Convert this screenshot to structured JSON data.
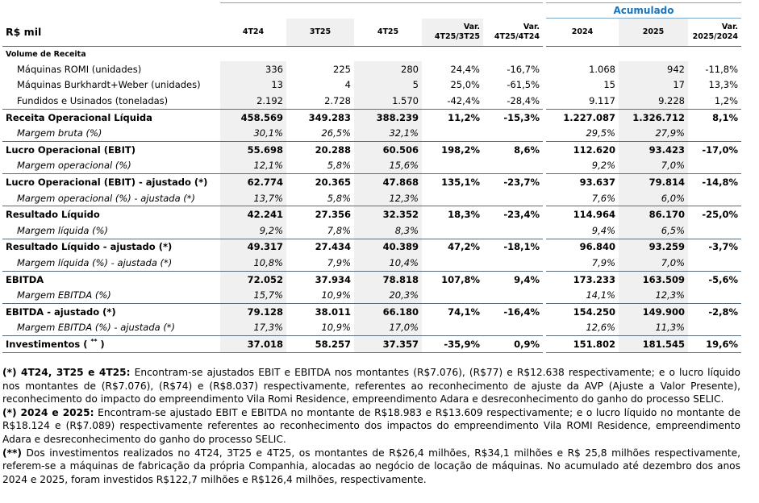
{
  "title": "R$ mil",
  "accumulated_title": "Acumulado",
  "columns": {
    "q4_24": "4T24",
    "q3_25": "3T25",
    "q4_25": "4T25",
    "var1_a": "Var.",
    "var1_b": "4T25/3T25",
    "var2_a": "Var.",
    "var2_b": "4T25/4T24",
    "y2024": "2024",
    "y2025": "2025",
    "var3_a": "Var.",
    "var3_b": "2025/2024"
  },
  "section_title": "Volume de Receita",
  "rows": [
    {
      "label": "Máquinas ROMI (unidades)",
      "v": [
        "336",
        "225",
        "280",
        "24,4%",
        "-16,7%",
        "1.068",
        "942",
        "-11,8%"
      ]
    },
    {
      "label": "Máquinas Burkhardt+Weber (unidades)",
      "v": [
        "13",
        "4",
        "5",
        "25,0%",
        "-61,5%",
        "15",
        "17",
        "13,3%"
      ]
    },
    {
      "label": "Fundidos e Usinados (toneladas)",
      "v": [
        "2.192",
        "2.728",
        "1.570",
        "-42,4%",
        "-28,4%",
        "9.117",
        "9.228",
        "1,2%"
      ]
    },
    {
      "label": "Receita Operacional Líquida",
      "v": [
        "458.569",
        "349.283",
        "388.239",
        "11,2%",
        "-15,3%",
        "1.227.087",
        "1.326.712",
        "8,1%"
      ]
    },
    {
      "label": "Margem bruta (%)",
      "v": [
        "30,1%",
        "26,5%",
        "32,1%",
        "",
        "",
        "29,5%",
        "27,9%",
        ""
      ]
    },
    {
      "label": "Lucro Operacional (EBIT)",
      "v": [
        "55.698",
        "20.288",
        "60.506",
        "198,2%",
        "8,6%",
        "112.620",
        "93.423",
        "-17,0%"
      ]
    },
    {
      "label": "Margem operacional  (%)",
      "v": [
        "12,1%",
        "5,8%",
        "15,6%",
        "",
        "",
        "9,2%",
        "7,0%",
        ""
      ]
    },
    {
      "label": "Lucro Operacional (EBIT) - ajustado (*)",
      "v": [
        "62.774",
        "20.365",
        "47.868",
        "135,1%",
        "-23,7%",
        "93.637",
        "79.814",
        "-14,8%"
      ]
    },
    {
      "label": "Margem operacional  (%) - ajustada (*)",
      "v": [
        "13,7%",
        "5,8%",
        "12,3%",
        "",
        "",
        "7,6%",
        "6,0%",
        ""
      ]
    },
    {
      "label": "Resultado Líquido",
      "v": [
        "42.241",
        "27.356",
        "32.352",
        "18,3%",
        "-23,4%",
        "114.964",
        "86.170",
        "-25,0%"
      ]
    },
    {
      "label": "Margem líquida (%)",
      "v": [
        "9,2%",
        "7,8%",
        "8,3%",
        "",
        "",
        "9,4%",
        "6,5%",
        ""
      ]
    },
    {
      "label": "Resultado Líquido - ajustado (*)",
      "v": [
        "49.317",
        "27.434",
        "40.389",
        "47,2%",
        "-18,1%",
        "96.840",
        "93.259",
        "-3,7%"
      ]
    },
    {
      "label": "Margem líquida (%) - ajustada (*)",
      "v": [
        "10,8%",
        "7,9%",
        "10,4%",
        "",
        "",
        "7,9%",
        "7,0%",
        ""
      ]
    },
    {
      "label": "EBITDA",
      "v": [
        "72.052",
        "37.934",
        "78.818",
        "107,8%",
        "9,4%",
        "173.233",
        "163.509",
        "-5,6%"
      ]
    },
    {
      "label": "Margem EBITDA (%)",
      "v": [
        "15,7%",
        "10,9%",
        "20,3%",
        "",
        "",
        "14,1%",
        "12,3%",
        ""
      ]
    },
    {
      "label": "EBITDA - ajustado (*)",
      "v": [
        "79.128",
        "38.011",
        "66.180",
        "74,1%",
        "-16,4%",
        "154.250",
        "149.900",
        "-2,8%"
      ]
    },
    {
      "label": "Margem EBITDA (%) - ajustada (*)",
      "v": [
        "17,3%",
        "10,9%",
        "17,0%",
        "",
        "",
        "12,6%",
        "11,3%",
        ""
      ]
    },
    {
      "label": "Investimentos (",
      "label_sup": "**",
      "label_tail": ")",
      "v": [
        "37.018",
        "58.257",
        "37.357",
        "-35,9%",
        "0,9%",
        "151.802",
        "181.545",
        "19,6%"
      ]
    }
  ],
  "notes": {
    "n1_bold": "(*) 4T24, 3T25 e 4T25:",
    "n1_text": " Encontram-se ajustados EBIT e EBITDA nos montantes (R$7.076), (R$77) e R$12.638 respectivamente; e o lucro líquido nos montantes de (R$7.076), (R$74) e (R$8.037) respectivamente, referentes ao reconhecimento de ajuste da AVP (Ajuste a Valor Presente), reconhecimento do impacto do empreendimento Vila Romi Residence, empreendimento Adara e desreconhecimento do ganho do processo SELIC.",
    "n2_bold": "(*) 2024 e 2025:",
    "n2_text": " Encontram-se ajustado EBIT e EBITDA no montante de R$18.983 e R$13.609 respectivamente; e o lucro líquido no montante de R$18.124 e (R$7.089) respectivamente referentes ao reconhecimento dos impactos do empreendimento Vila ROMI Residence, empreendimento Adara e desreconhecimento do ganho do processo SELIC.",
    "n3_bold": "(**)",
    "n3_text": " Dos investimentos realizados no 4T24, 3T25 e 4T25, os montantes de R$26,4 milhões, R$34,1 milhões e R$ 25,8 milhões respectivamente, referem-se a máquinas de fabricação da própria Companhia, alocadas ao negócio de locação de máquinas. No acumulado até dezembro dos anos 2024 e 2025, foram investidos R$122,7 milhões e R$126,4 milhões, respectivamente."
  }
}
